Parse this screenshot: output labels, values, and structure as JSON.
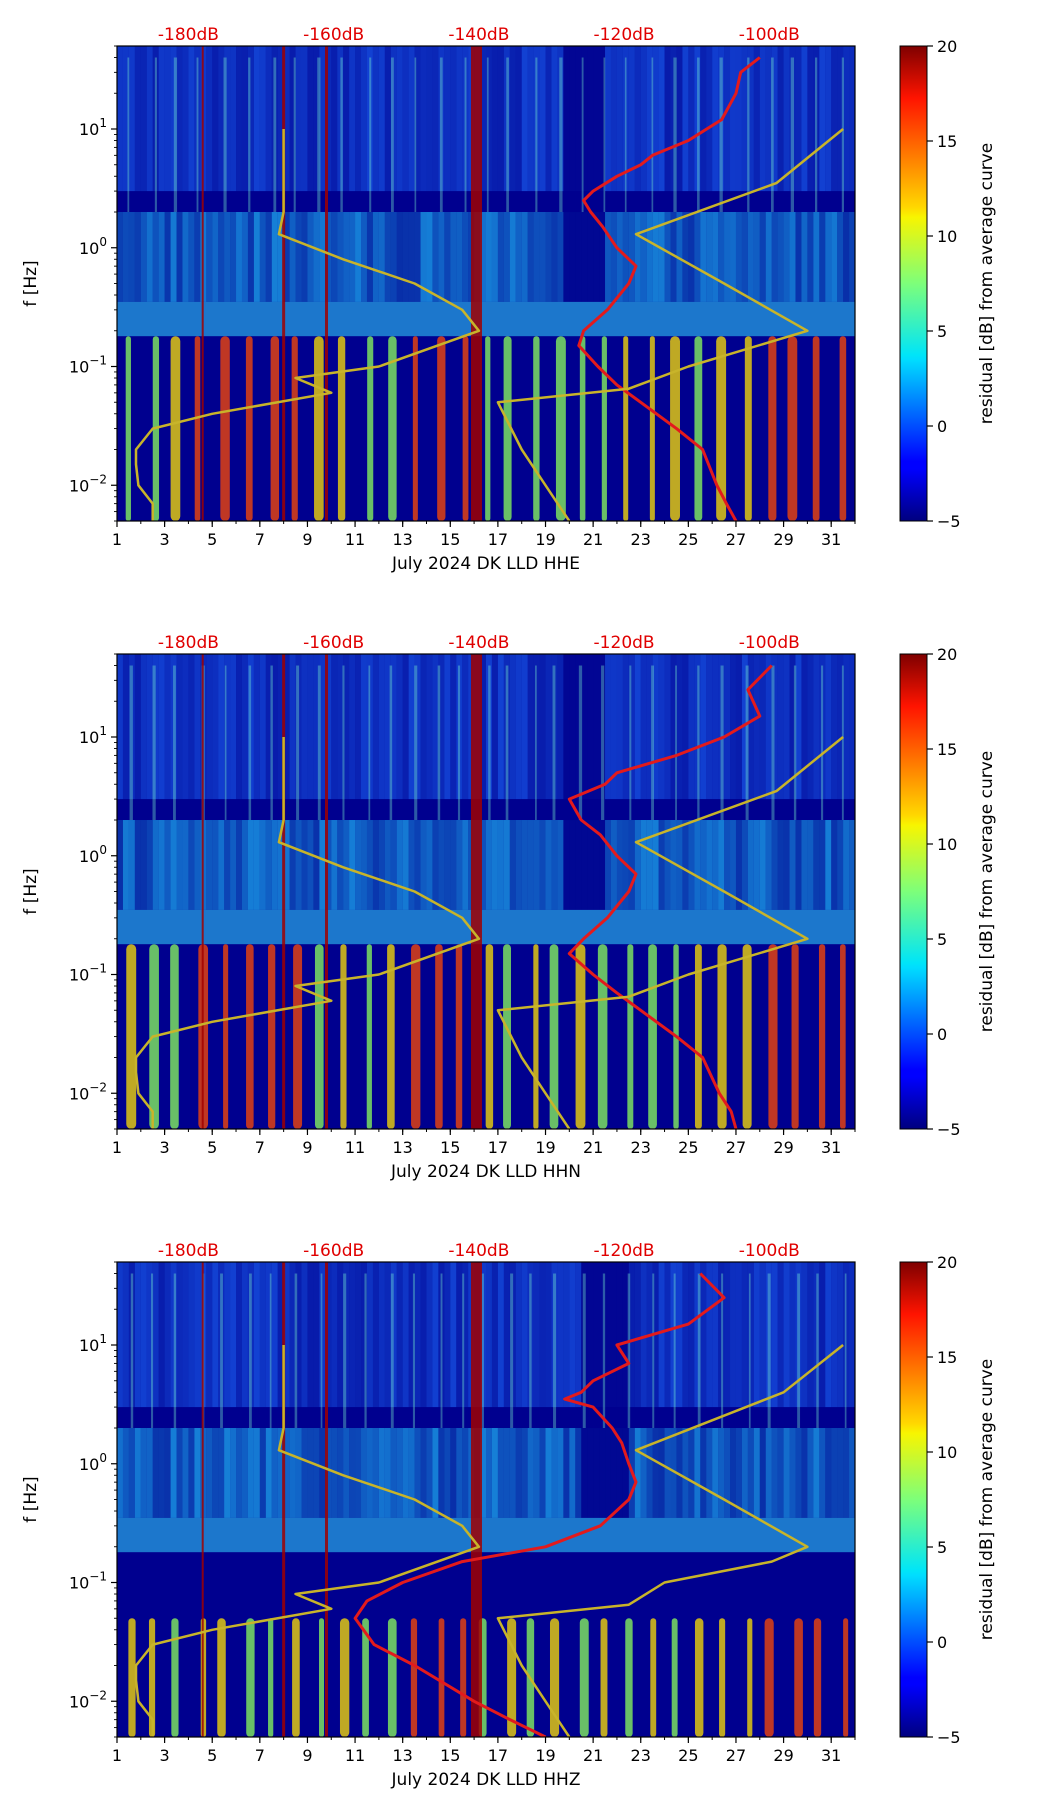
{
  "colors": {
    "background_low": "#00008f",
    "ppsd_curve": "#e31a1c",
    "noise_model": "#c8b42a",
    "db_labels": "#e00000"
  },
  "chart_data": [
    {
      "type": "heatmap",
      "title": "",
      "xlabel": "July 2024 DK LLD  HHE",
      "ylabel": "f [Hz]",
      "xlim": [
        1,
        32
      ],
      "ylim": [
        0.005,
        50
      ],
      "yscale": "log",
      "x_ticks": [
        "1",
        "3",
        "5",
        "7",
        "9",
        "11",
        "13",
        "15",
        "17",
        "19",
        "21",
        "23",
        "25",
        "27",
        "29",
        "31"
      ],
      "y_ticks": [
        {
          "label": "10^1",
          "value": 10
        },
        {
          "label": "10^0",
          "value": 1
        },
        {
          "label": "10^-1",
          "value": 0.1
        },
        {
          "label": "10^-2",
          "value": 0.01
        }
      ],
      "top_db_labels": [
        "-180dB",
        "-160dB",
        "-140dB",
        "-120dB",
        "-100dB"
      ],
      "colorbar": {
        "label": "residual [dB] from average curve",
        "range": [
          -5,
          20
        ],
        "ticks": [
          "20",
          "15",
          "10",
          "5",
          "0",
          "−5"
        ]
      },
      "series": [
        {
          "name": "ppsd_mean_curve",
          "color": "#e31a1c",
          "freq": [
            40,
            30,
            20,
            12,
            8,
            6,
            5,
            4,
            3,
            2.5,
            2,
            1.5,
            1,
            0.7,
            0.5,
            0.3,
            0.2,
            0.15,
            0.1,
            0.07,
            0.05,
            0.03,
            0.02,
            0.01,
            0.007,
            0.005
          ],
          "x": [
            28.0,
            27.2,
            27.0,
            26.4,
            25.0,
            23.5,
            23.0,
            22.0,
            21.0,
            20.6,
            20.9,
            21.4,
            22.0,
            22.8,
            22.5,
            21.6,
            20.6,
            20.4,
            21.2,
            22.0,
            23.0,
            24.5,
            25.6,
            26.2,
            26.6,
            27.0
          ]
        },
        {
          "name": "noise_model_line",
          "color": "#c8b42a",
          "freq": [
            10,
            5,
            2,
            1.3,
            0.8,
            0.5,
            0.3,
            0.2,
            0.1,
            0.08,
            0.06,
            0.04,
            0.03,
            0.02,
            0.015,
            0.01,
            0.007,
            0.005
          ],
          "x": [
            8.0,
            8.0,
            8.0,
            7.8,
            10.5,
            13.5,
            15.5,
            16.2,
            12.0,
            8.5,
            10.0,
            5.0,
            2.5,
            1.8,
            1.8,
            1.9,
            2.5,
            2.5
          ]
        },
        {
          "name": "noise_model_right_line",
          "color": "#c8b42a",
          "freq": [
            10,
            3.5,
            1.3,
            0.5,
            0.2,
            0.1,
            0.065,
            0.05,
            0.02,
            0.01,
            0.005
          ],
          "x": [
            31.5,
            28.7,
            22.8,
            26.5,
            30.0,
            25.0,
            22.5,
            17.0,
            18.0,
            19.0,
            20.0
          ]
        }
      ]
    },
    {
      "type": "heatmap",
      "title": "",
      "xlabel": "July 2024 DK LLD  HHN",
      "ylabel": "f [Hz]",
      "xlim": [
        1,
        32
      ],
      "ylim": [
        0.005,
        50
      ],
      "yscale": "log",
      "x_ticks": [
        "1",
        "3",
        "5",
        "7",
        "9",
        "11",
        "13",
        "15",
        "17",
        "19",
        "21",
        "23",
        "25",
        "27",
        "29",
        "31"
      ],
      "y_ticks": [
        {
          "label": "10^1",
          "value": 10
        },
        {
          "label": "10^0",
          "value": 1
        },
        {
          "label": "10^-1",
          "value": 0.1
        },
        {
          "label": "10^-2",
          "value": 0.01
        }
      ],
      "top_db_labels": [
        "-180dB",
        "-160dB",
        "-140dB",
        "-120dB",
        "-100dB"
      ],
      "colorbar": {
        "label": "residual [dB] from average curve",
        "range": [
          -5,
          20
        ],
        "ticks": [
          "20",
          "15",
          "10",
          "5",
          "0",
          "−5"
        ]
      },
      "series": [
        {
          "name": "ppsd_mean_curve",
          "color": "#e31a1c",
          "freq": [
            40,
            25,
            15,
            10,
            7,
            5,
            4,
            3,
            2,
            1.5,
            1,
            0.7,
            0.5,
            0.3,
            0.2,
            0.15,
            0.1,
            0.07,
            0.05,
            0.03,
            0.02,
            0.01,
            0.007,
            0.005
          ],
          "x": [
            28.5,
            27.5,
            28.0,
            26.5,
            24.5,
            22.0,
            21.5,
            20.0,
            20.5,
            21.3,
            22.0,
            22.8,
            22.5,
            21.6,
            20.6,
            20.0,
            21.0,
            22.0,
            23.0,
            24.5,
            25.6,
            26.3,
            26.8,
            27.0
          ]
        },
        {
          "name": "noise_model_line",
          "color": "#c8b42a",
          "freq": [
            10,
            5,
            2,
            1.3,
            0.8,
            0.5,
            0.3,
            0.2,
            0.1,
            0.08,
            0.06,
            0.04,
            0.03,
            0.02,
            0.015,
            0.01,
            0.007,
            0.005
          ],
          "x": [
            8.0,
            8.0,
            8.0,
            7.8,
            10.5,
            13.5,
            15.5,
            16.2,
            12.0,
            8.5,
            10.0,
            5.0,
            2.5,
            1.8,
            1.8,
            1.9,
            2.5,
            2.5
          ]
        },
        {
          "name": "noise_model_right_line",
          "color": "#c8b42a",
          "freq": [
            10,
            3.5,
            1.3,
            0.5,
            0.2,
            0.1,
            0.065,
            0.05,
            0.02,
            0.01,
            0.005
          ],
          "x": [
            31.5,
            28.7,
            22.8,
            26.5,
            30.0,
            25.0,
            22.5,
            17.0,
            18.0,
            19.0,
            20.0
          ]
        }
      ]
    },
    {
      "type": "heatmap",
      "title": "",
      "xlabel": "July 2024 DK LLD  HHZ",
      "ylabel": "f [Hz]",
      "xlim": [
        1,
        32
      ],
      "ylim": [
        0.005,
        50
      ],
      "yscale": "log",
      "x_ticks": [
        "1",
        "3",
        "5",
        "7",
        "9",
        "11",
        "13",
        "15",
        "17",
        "19",
        "21",
        "23",
        "25",
        "27",
        "29",
        "31"
      ],
      "y_ticks": [
        {
          "label": "10^1",
          "value": 10
        },
        {
          "label": "10^0",
          "value": 1
        },
        {
          "label": "10^-1",
          "value": 0.1
        },
        {
          "label": "10^-2",
          "value": 0.01
        }
      ],
      "top_db_labels": [
        "-180dB",
        "-160dB",
        "-140dB",
        "-120dB",
        "-100dB"
      ],
      "colorbar": {
        "label": "residual [dB] from average curve",
        "range": [
          -5,
          20
        ],
        "ticks": [
          "20",
          "15",
          "10",
          "5",
          "0",
          "−5"
        ]
      },
      "series": [
        {
          "name": "ppsd_mean_curve",
          "color": "#e31a1c",
          "freq": [
            40,
            25,
            15,
            10,
            7,
            5,
            4,
            3.5,
            3,
            2,
            1.5,
            1,
            0.7,
            0.5,
            0.3,
            0.2,
            0.15,
            0.1,
            0.07,
            0.05,
            0.03,
            0.02,
            0.01,
            0.007,
            0.005
          ],
          "x": [
            25.5,
            26.5,
            25.0,
            22.0,
            22.5,
            21.0,
            20.5,
            19.8,
            21.0,
            21.8,
            22.2,
            22.5,
            22.8,
            22.5,
            21.3,
            19.0,
            15.5,
            13.0,
            11.5,
            11.0,
            11.8,
            13.5,
            16.0,
            17.5,
            19.0
          ]
        },
        {
          "name": "noise_model_line",
          "color": "#c8b42a",
          "freq": [
            10,
            5,
            2,
            1.3,
            0.8,
            0.5,
            0.3,
            0.2,
            0.1,
            0.08,
            0.06,
            0.04,
            0.03,
            0.02,
            0.015,
            0.01,
            0.007,
            0.005
          ],
          "x": [
            8.0,
            8.0,
            8.0,
            7.8,
            10.5,
            13.5,
            15.5,
            16.2,
            12.0,
            8.5,
            10.0,
            5.0,
            2.5,
            1.8,
            1.8,
            1.9,
            2.5,
            2.5
          ]
        },
        {
          "name": "noise_model_right_line",
          "color": "#c8b42a",
          "freq": [
            10,
            4,
            1.3,
            0.5,
            0.2,
            0.15,
            0.1,
            0.065,
            0.05,
            0.02,
            0.01,
            0.005
          ],
          "x": [
            31.5,
            29.0,
            22.8,
            26.5,
            30.0,
            28.5,
            24.0,
            22.5,
            17.0,
            18.0,
            19.0,
            20.0
          ]
        }
      ]
    }
  ]
}
